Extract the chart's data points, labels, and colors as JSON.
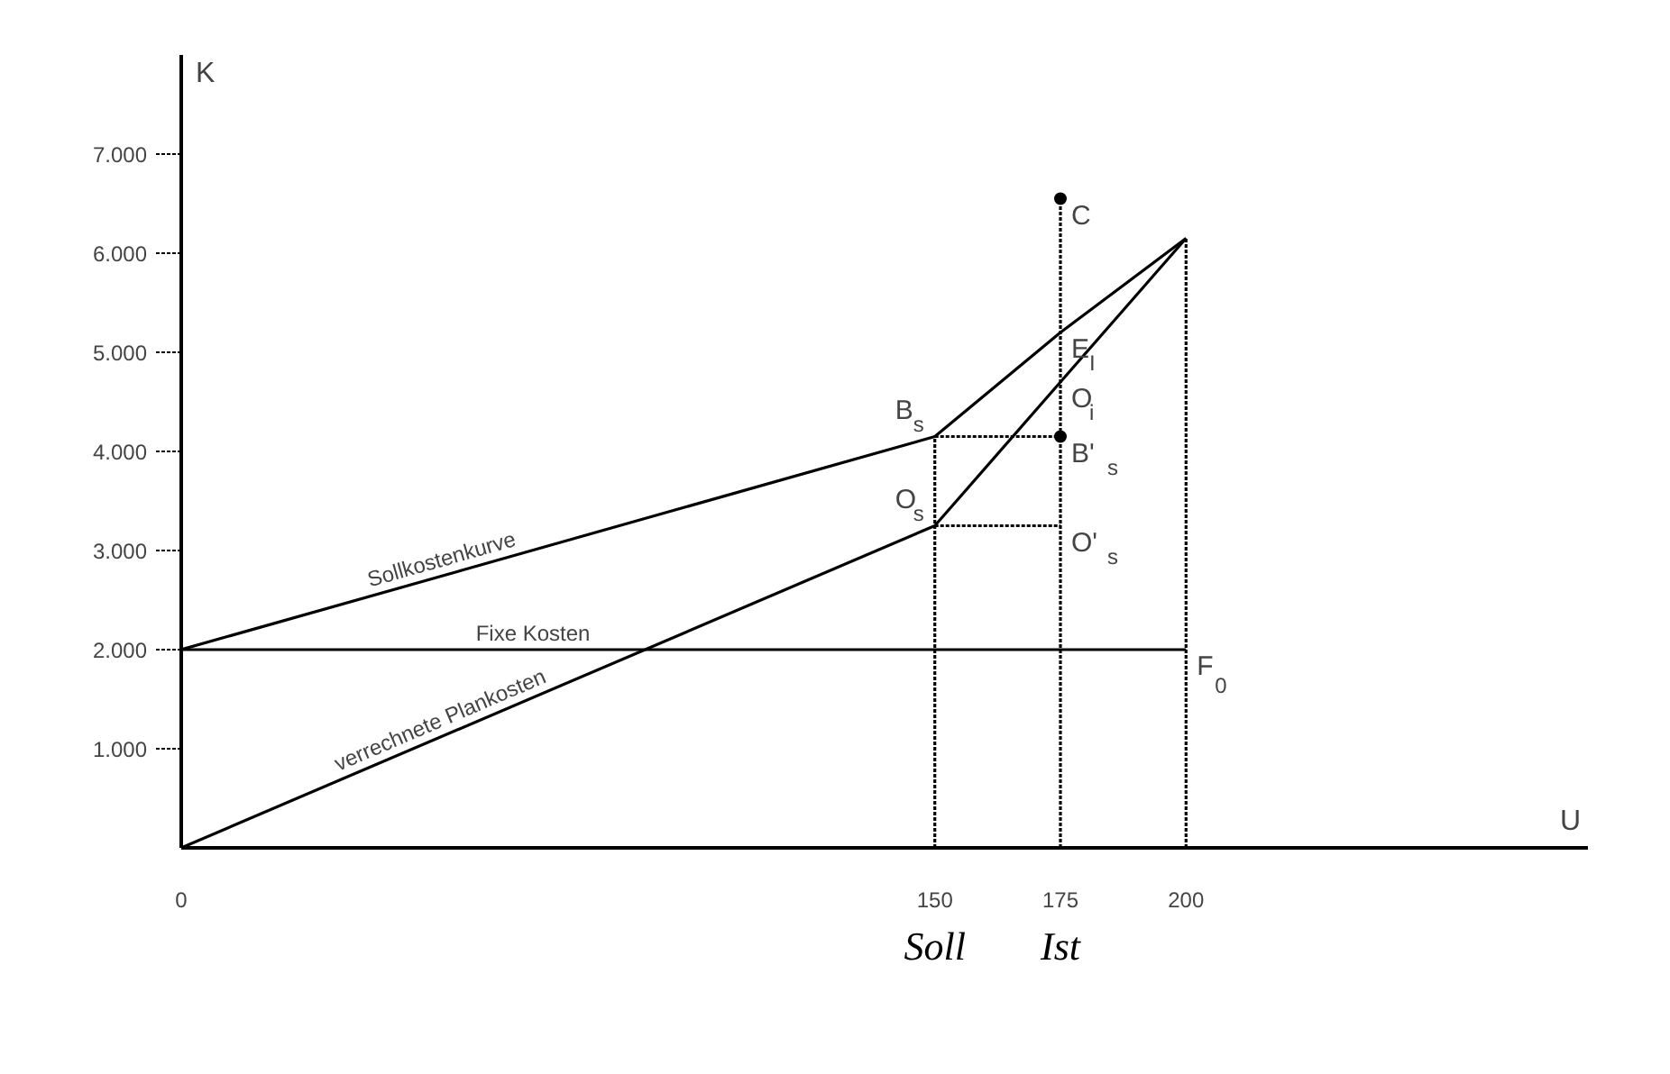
{
  "chart_data": {
    "type": "line",
    "xlabel": "U",
    "ylabel": "K",
    "xlim": [
      0,
      280
    ],
    "ylim": [
      0,
      8000
    ],
    "xticks": [
      0,
      150,
      175,
      200
    ],
    "yticks": [
      {
        "value": 1000,
        "label": "1.000"
      },
      {
        "value": 2000,
        "label": "2.000"
      },
      {
        "value": 3000,
        "label": "3.000"
      },
      {
        "value": 4000,
        "label": "4.000"
      },
      {
        "value": 5000,
        "label": "5.000"
      },
      {
        "value": 6000,
        "label": "6.000"
      },
      {
        "value": 7000,
        "label": "7.000"
      }
    ],
    "grid": false,
    "series": [
      {
        "name": "Sollkostenkurve",
        "color": "#000000",
        "x": [
          0,
          150,
          175,
          200
        ],
        "values": [
          2000,
          4150,
          5200,
          6150
        ],
        "line_style": "solid"
      },
      {
        "name": "Fixe Kosten",
        "color": "#000000",
        "x": [
          0,
          200
        ],
        "values": [
          2000,
          2000
        ],
        "line_style": "solid"
      },
      {
        "name": "verrechnete Plankosten",
        "color": "#000000",
        "x": [
          0,
          150,
          175,
          200
        ],
        "values": [
          0,
          3250,
          4700,
          6150
        ],
        "line_style": "solid"
      },
      {
        "color": "#000000",
        "x": [
          150,
          150
        ],
        "values": [
          0,
          4150
        ],
        "line_style": "dotted"
      },
      {
        "color": "#000000",
        "x": [
          175,
          175
        ],
        "values": [
          0,
          6550
        ],
        "line_style": "dotted"
      },
      {
        "color": "#000000",
        "x": [
          200,
          200
        ],
        "values": [
          0,
          6150
        ],
        "line_style": "dotted"
      },
      {
        "color": "#000000",
        "x": [
          150,
          175
        ],
        "values": [
          4150,
          4150
        ],
        "line_style": "dotted"
      },
      {
        "color": "#000000",
        "x": [
          150,
          175
        ],
        "values": [
          3250,
          3250
        ],
        "line_style": "dotted"
      },
      {
        "type": "scatter",
        "color": "#000000",
        "x": [
          175,
          175
        ],
        "values": [
          6550,
          4150
        ],
        "marker": "circle"
      }
    ],
    "annotations": [
      {
        "text": "C",
        "x": 175,
        "y": 6550
      },
      {
        "text": "E$_{I}$",
        "x": 175,
        "y": 5200
      },
      {
        "text": "O$_{i}$",
        "x": 175,
        "y": 4700
      },
      {
        "text": "B'$_{s}$",
        "x": 175,
        "y": 4150
      },
      {
        "text": "O'$_{s}$",
        "x": 175,
        "y": 3250
      },
      {
        "text": "B$_{s}$",
        "x": 150,
        "y": 4150
      },
      {
        "text": "O$_{s}$",
        "x": 150,
        "y": 3250
      },
      {
        "text": "F$_{0}$",
        "x": 200,
        "y": 2000
      },
      "Soll",
      "Ist"
    ]
  }
}
